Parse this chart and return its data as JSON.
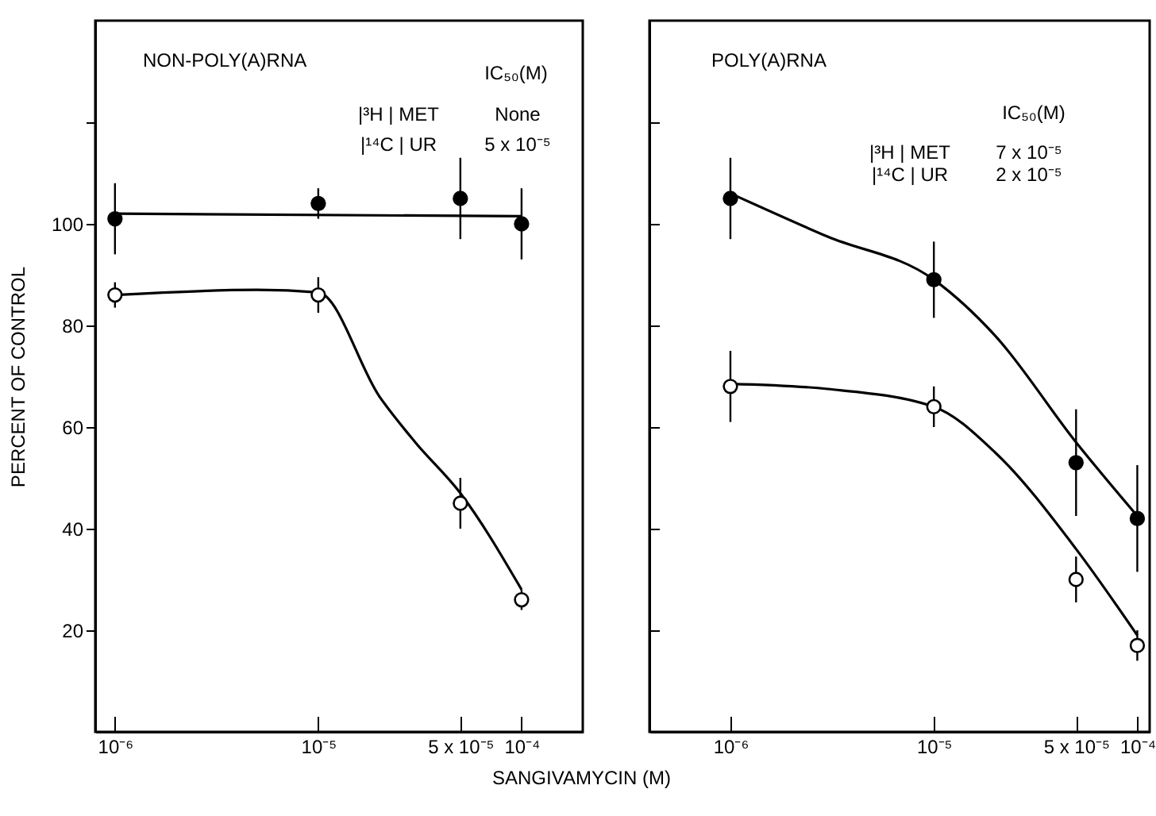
{
  "chart_data": [
    {
      "type": "scatter",
      "title": "NON-POLY(A)RNA",
      "ylabel": "PERCENT OF CONTROL",
      "xlabel": "SANGIVAMYCIN (M)",
      "log": "x",
      "marker": "circle",
      "xlim": [
        8e-07,
        0.0002
      ],
      "xticks": [
        {
          "value": 1e-06,
          "label": "10⁻⁶"
        },
        {
          "value": 1e-05,
          "label": "10⁻⁵"
        },
        {
          "value": 5e-05,
          "label": "5 x 10⁻⁵"
        },
        {
          "value": 0.0001,
          "label": "10⁻⁴"
        }
      ],
      "ylim": [
        0,
        140
      ],
      "yticks": [
        20,
        40,
        60,
        80,
        100,
        {
          "value": 120,
          "label": null
        }
      ],
      "annotations": [
        "IC₅₀(M)",
        "|³H | MET",
        "None",
        "|¹⁴C | UR",
        "5 x 10⁻⁵"
      ],
      "series": [
        {
          "type": "line",
          "marker": "none",
          "color": "#000000",
          "x": [
            1e-06,
            0.0001
          ],
          "values": [
            102,
            101.5
          ]
        },
        {
          "type": "line",
          "marker": "none",
          "color": "#000000",
          "x": [
            1e-06,
            5e-06,
            1e-05,
            2e-05,
            3e-05,
            5e-05,
            0.0001
          ],
          "values": [
            86,
            87,
            86.5,
            66,
            57,
            47,
            28
          ]
        },
        {
          "color": "#000000",
          "x": [
            1e-06,
            1e-05,
            5e-05,
            0.0001
          ],
          "values": [
            101,
            104,
            105,
            100
          ],
          "errors": [
            7,
            3,
            8,
            7
          ]
        },
        {
          "color": "#ffffff",
          "x": [
            1e-06,
            1e-05,
            5e-05,
            0.0001
          ],
          "values": [
            86,
            86,
            45,
            26
          ],
          "errors": [
            2.5,
            3.5,
            5,
            2
          ]
        }
      ]
    },
    {
      "type": "scatter",
      "title": "POLY(A)RNA",
      "log": "x",
      "marker": "circle",
      "tick_labels": "x",
      "xlim": [
        4e-07,
        0.000115
      ],
      "xticks": [
        {
          "value": 1e-06,
          "label": "10⁻⁶"
        },
        {
          "value": 1e-05,
          "label": "10⁻⁵"
        },
        {
          "value": 5e-05,
          "label": "5 x 10⁻⁵"
        },
        {
          "value": 0.0001,
          "label": "10⁻⁴"
        }
      ],
      "ylim": [
        0,
        140
      ],
      "yticks": [
        20,
        40,
        60,
        80,
        100,
        {
          "value": 120,
          "label": null
        }
      ],
      "annotations": [
        "IC₅₀(M)",
        "|³H | MET",
        "7 x 10⁻⁵",
        "|¹⁴C | UR",
        "2 x 10⁻⁵"
      ],
      "series": [
        {
          "type": "line",
          "marker": "none",
          "color": "#000000",
          "x": [
            1e-06,
            3e-06,
            1e-05,
            2e-05,
            5e-05,
            0.0001
          ],
          "values": [
            106,
            97.5,
            89,
            78,
            57,
            42.5
          ]
        },
        {
          "type": "line",
          "marker": "none",
          "color": "#000000",
          "x": [
            1e-06,
            3e-06,
            1e-05,
            2e-05,
            5e-05,
            0.0001
          ],
          "values": [
            68.5,
            67.5,
            64,
            55,
            36,
            19
          ]
        },
        {
          "color": "#000000",
          "x": [
            1e-06,
            1e-05,
            5e-05,
            0.0001
          ],
          "values": [
            105,
            89,
            53,
            42
          ],
          "errors": [
            8,
            7.5,
            10.5,
            10.5
          ]
        },
        {
          "color": "#ffffff",
          "x": [
            1e-06,
            1e-05,
            5e-05,
            0.0001
          ],
          "values": [
            68,
            64,
            30,
            17
          ],
          "errors": [
            7,
            4,
            4.5,
            3
          ]
        }
      ]
    }
  ]
}
